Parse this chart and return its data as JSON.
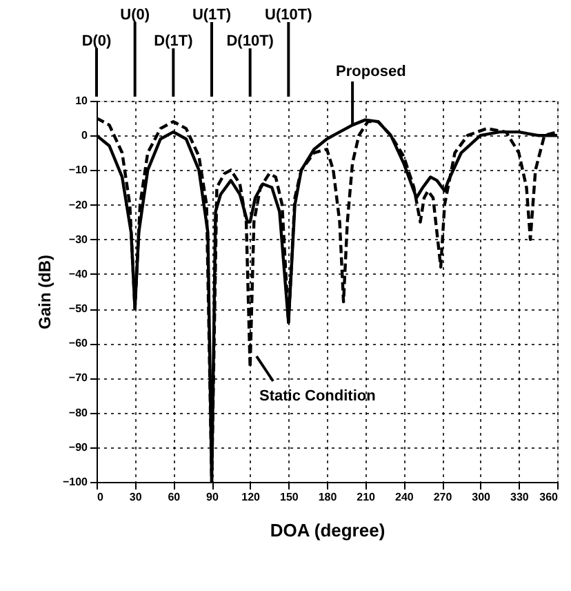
{
  "chart_data": {
    "type": "line",
    "xlabel": "DOA (degree)",
    "ylabel": "Gain (dB)",
    "xlim": [
      0,
      360
    ],
    "xticks": [
      0,
      30,
      60,
      90,
      120,
      150,
      180,
      210,
      240,
      270,
      300,
      330,
      360
    ],
    "ylim": [
      -100,
      10
    ],
    "yticks": [
      -100,
      -90,
      -80,
      -70,
      -60,
      -50,
      -40,
      -30,
      -20,
      -10,
      0,
      10
    ],
    "grid": true,
    "marker": "none",
    "series": [
      {
        "color": "#000000",
        "line_style": "solid",
        "x": [
          0,
          10,
          20,
          27,
          30,
          33,
          40,
          50,
          60,
          70,
          80,
          87,
          90,
          93,
          97,
          105,
          112,
          118,
          120,
          124,
          130,
          137,
          143,
          150,
          155,
          160,
          170,
          180,
          190,
          200,
          210,
          220,
          230,
          240,
          250,
          255,
          261,
          266,
          272,
          275,
          285,
          300,
          315,
          330,
          345,
          360
        ],
        "values": [
          0,
          -3,
          -12,
          -28,
          -50,
          -28,
          -10,
          -1,
          1,
          -1,
          -10,
          -28,
          -100,
          -22,
          -17,
          -13,
          -17,
          -25,
          -25,
          -18,
          -14,
          -15,
          -22,
          -54,
          -20,
          -10,
          -4,
          -1,
          1,
          3,
          4.5,
          4,
          0,
          -8,
          -18,
          -15,
          -12,
          -13,
          -16,
          -13,
          -5,
          0,
          1,
          1,
          0,
          0
        ]
      },
      {
        "color": "#000000",
        "line_style": "dashed",
        "x": [
          0,
          10,
          20,
          26,
          30,
          34,
          40,
          50,
          60,
          70,
          80,
          86,
          90,
          94,
          100,
          105,
          112,
          117,
          120,
          123,
          128,
          135,
          140,
          145,
          150,
          155,
          160,
          170,
          180,
          185,
          190,
          193,
          196,
          200,
          205,
          212,
          220,
          230,
          240,
          248,
          253,
          256,
          259,
          263,
          266,
          269,
          272,
          280,
          290,
          305,
          320,
          330,
          336,
          339,
          343,
          350,
          360
        ],
        "values": [
          5,
          3,
          -5,
          -20,
          -50,
          -20,
          -5,
          2,
          4,
          2,
          -6,
          -20,
          -100,
          -15,
          -11,
          -10,
          -14,
          -25,
          -67,
          -25,
          -15,
          -11,
          -12,
          -20,
          -54,
          -18,
          -10,
          -5,
          -4,
          -10,
          -25,
          -48,
          -25,
          -8,
          0,
          4,
          4,
          0,
          -6,
          -15,
          -25,
          -18,
          -16,
          -18,
          -28,
          -38,
          -20,
          -5,
          0,
          2,
          1,
          -5,
          -15,
          -30,
          -10,
          0,
          1
        ]
      }
    ],
    "annotations": [
      {
        "text": "D(0)",
        "x": 0
      },
      {
        "text": "U(0)",
        "x": 30
      },
      {
        "text": "D(1T)",
        "x": 60
      },
      {
        "text": "U(1T)",
        "x": 90
      },
      {
        "text": "D(10T)",
        "x": 120
      },
      {
        "text": "U(10T)",
        "x": 150
      },
      {
        "text": "Proposed",
        "x": 200,
        "y": 3
      },
      "Static Condition"
    ]
  }
}
